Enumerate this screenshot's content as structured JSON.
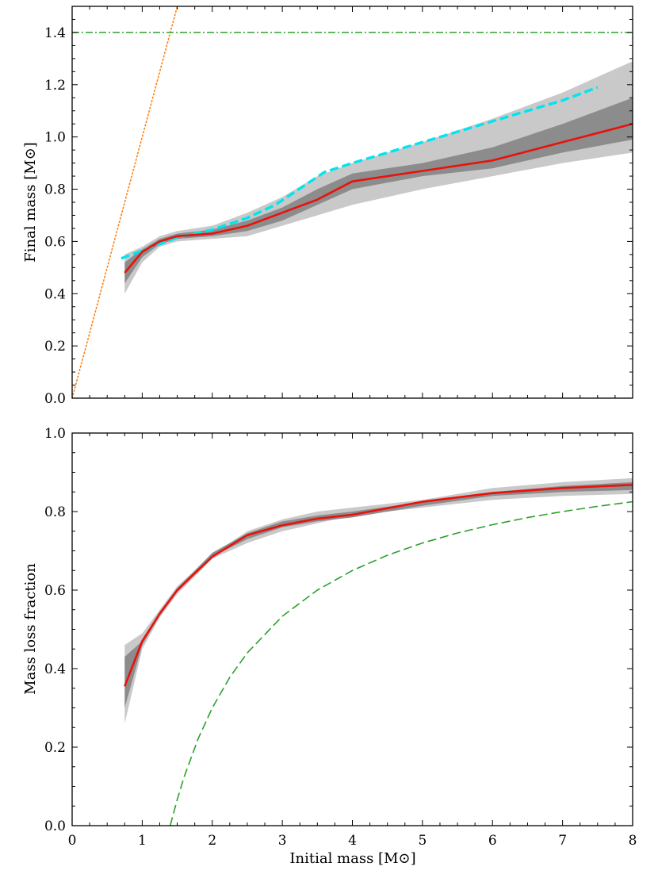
{
  "chart_data": [
    {
      "type": "line",
      "id": "top",
      "ylabel": "Final mass [M⊙]",
      "xlabel": "",
      "xlim": [
        0,
        8
      ],
      "ylim": [
        0,
        1.5
      ],
      "xticks": [
        0,
        1,
        2,
        3,
        4,
        5,
        6,
        7,
        8
      ],
      "yticks": [
        0.0,
        0.2,
        0.4,
        0.6,
        0.8,
        1.0,
        1.2,
        1.4
      ],
      "ytick_labels": [
        "0.0",
        "0.2",
        "0.4",
        "0.6",
        "0.8",
        "1.0",
        "1.2",
        "1.4"
      ],
      "bands": [
        {
          "name": "outer-band",
          "color": "#c9c9c9",
          "x": [
            0.75,
            1.0,
            1.25,
            1.5,
            2.0,
            2.5,
            3.0,
            3.5,
            4.0,
            5.0,
            6.0,
            7.0,
            8.0
          ],
          "lower": [
            0.4,
            0.52,
            0.58,
            0.6,
            0.61,
            0.62,
            0.66,
            0.7,
            0.74,
            0.8,
            0.85,
            0.9,
            0.94
          ],
          "upper": [
            0.55,
            0.58,
            0.62,
            0.64,
            0.66,
            0.71,
            0.77,
            0.85,
            0.9,
            0.98,
            1.07,
            1.17,
            1.29
          ]
        },
        {
          "name": "inner-band",
          "color": "#8c8c8c",
          "x": [
            0.75,
            1.0,
            1.25,
            1.5,
            2.0,
            2.5,
            3.0,
            3.5,
            4.0,
            5.0,
            6.0,
            7.0,
            8.0
          ],
          "lower": [
            0.44,
            0.54,
            0.59,
            0.61,
            0.62,
            0.64,
            0.68,
            0.74,
            0.8,
            0.85,
            0.88,
            0.94,
            0.99
          ],
          "upper": [
            0.52,
            0.57,
            0.61,
            0.63,
            0.645,
            0.68,
            0.73,
            0.8,
            0.86,
            0.9,
            0.96,
            1.05,
            1.15
          ]
        }
      ],
      "series": [
        {
          "name": "red-median",
          "color": "#e8120c",
          "style": "solid",
          "x": [
            0.75,
            1.0,
            1.25,
            1.5,
            2.0,
            2.5,
            3.0,
            3.5,
            4.0,
            5.0,
            6.0,
            7.0,
            8.0
          ],
          "values": [
            0.48,
            0.56,
            0.6,
            0.62,
            0.63,
            0.66,
            0.71,
            0.76,
            0.83,
            0.87,
            0.91,
            0.98,
            1.05
          ]
        },
        {
          "name": "cyan-dashed",
          "color": "#00e5ee",
          "style": "dashed",
          "x": [
            0.7,
            1.5,
            2.0,
            2.5,
            2.9,
            3.6,
            4.0,
            5.0,
            6.0,
            7.0,
            7.5
          ],
          "values": [
            0.535,
            0.615,
            0.645,
            0.69,
            0.74,
            0.865,
            0.9,
            0.98,
            1.06,
            1.14,
            1.19
          ]
        },
        {
          "name": "orange-dotted",
          "color": "#ff7f0e",
          "style": "dotted",
          "x": [
            0.0,
            1.5
          ],
          "values": [
            0.0,
            1.5
          ]
        },
        {
          "name": "green-dashdot",
          "color": "#2ca02c",
          "style": "dashdot",
          "x": [
            0.0,
            8.0
          ],
          "values": [
            1.4,
            1.4
          ]
        }
      ]
    },
    {
      "type": "line",
      "id": "bottom",
      "ylabel": "Mass loss fraction",
      "xlabel": "Initial mass [M⊙]",
      "xlim": [
        0,
        8
      ],
      "ylim": [
        0,
        1.0
      ],
      "xticks": [
        0,
        1,
        2,
        3,
        4,
        5,
        6,
        7,
        8
      ],
      "xtick_labels": [
        "0",
        "1",
        "2",
        "3",
        "4",
        "5",
        "6",
        "7",
        "8"
      ],
      "yticks": [
        0.0,
        0.2,
        0.4,
        0.6,
        0.8,
        1.0
      ],
      "ytick_labels": [
        "0.0",
        "0.2",
        "0.4",
        "0.6",
        "0.8",
        "1.0"
      ],
      "bands": [
        {
          "name": "outer-band",
          "color": "#c9c9c9",
          "x": [
            0.75,
            1.0,
            1.25,
            1.5,
            2.0,
            2.5,
            3.0,
            3.5,
            4.0,
            5.0,
            6.0,
            7.0,
            8.0
          ],
          "lower": [
            0.26,
            0.45,
            0.53,
            0.59,
            0.68,
            0.72,
            0.75,
            0.77,
            0.79,
            0.81,
            0.83,
            0.84,
            0.845
          ],
          "upper": [
            0.46,
            0.49,
            0.55,
            0.61,
            0.69,
            0.75,
            0.78,
            0.8,
            0.81,
            0.83,
            0.86,
            0.875,
            0.885
          ]
        },
        {
          "name": "inner-band",
          "color": "#8c8c8c",
          "x": [
            0.75,
            1.0,
            1.25,
            1.5,
            2.0,
            2.5,
            3.0,
            3.5,
            4.0,
            5.0,
            6.0,
            7.0,
            8.0
          ],
          "lower": [
            0.3,
            0.46,
            0.535,
            0.595,
            0.685,
            0.73,
            0.76,
            0.775,
            0.785,
            0.815,
            0.84,
            0.85,
            0.855
          ],
          "upper": [
            0.43,
            0.47,
            0.545,
            0.605,
            0.695,
            0.745,
            0.775,
            0.79,
            0.8,
            0.825,
            0.85,
            0.865,
            0.875
          ]
        }
      ],
      "series": [
        {
          "name": "red-median",
          "color": "#e8120c",
          "style": "solid",
          "x": [
            0.75,
            1.0,
            1.25,
            1.5,
            2.0,
            2.5,
            3.0,
            3.5,
            4.0,
            5.0,
            6.0,
            7.0,
            8.0
          ],
          "values": [
            0.355,
            0.47,
            0.54,
            0.6,
            0.685,
            0.74,
            0.765,
            0.782,
            0.792,
            0.825,
            0.847,
            0.86,
            0.868
          ]
        },
        {
          "name": "green-dashed",
          "color": "#2ca02c",
          "style": "dashed",
          "function": "1 - 1.4/x",
          "x": [
            1.4,
            1.5,
            1.6,
            1.8,
            2.0,
            2.25,
            2.5,
            3.0,
            3.5,
            4.0,
            4.5,
            5.0,
            5.5,
            6.0,
            6.5,
            7.0,
            7.5,
            8.0
          ],
          "values": [
            0.0,
            0.0667,
            0.125,
            0.2222,
            0.3,
            0.3778,
            0.44,
            0.5333,
            0.6,
            0.65,
            0.6889,
            0.72,
            0.7455,
            0.7667,
            0.7846,
            0.8,
            0.8133,
            0.825
          ]
        }
      ]
    }
  ]
}
